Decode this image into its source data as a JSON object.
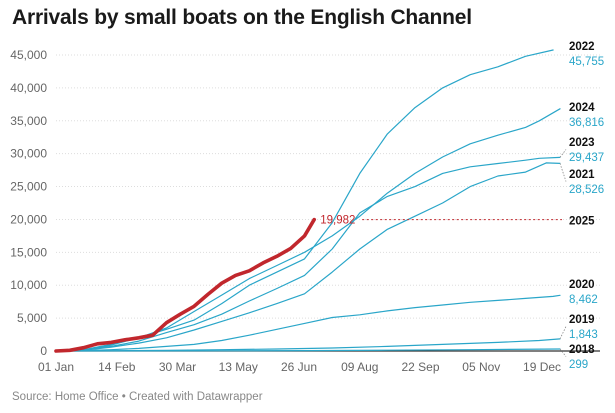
{
  "chart_data": {
    "type": "line",
    "title": "Arrivals by small boats on the English Channel",
    "source": "Source: Home Office • Created with Datawrapper",
    "ylim": [
      0,
      45000
    ],
    "y_ticks": [
      "0",
      "5,000",
      "10,000",
      "15,000",
      "20,000",
      "25,000",
      "30,000",
      "35,000",
      "40,000",
      "45,000"
    ],
    "y_tick_values": [
      0,
      5000,
      10000,
      15000,
      20000,
      25000,
      30000,
      35000,
      40000,
      45000
    ],
    "x_range_days": [
      0,
      365
    ],
    "x_ticks": [
      "01 Jan",
      "14 Feb",
      "30 Mar",
      "13 May",
      "26 Jun",
      "09 Aug",
      "22 Sep",
      "05 Nov",
      "19 Dec"
    ],
    "x_tick_days": [
      0,
      44,
      88,
      132,
      176,
      220,
      264,
      308,
      352
    ],
    "highlight_color": "#c1272d",
    "series_color": "#2aa6c9",
    "series": [
      {
        "name": "2022",
        "final_label": "45,755",
        "points": [
          [
            0,
            0
          ],
          [
            20,
            150
          ],
          [
            40,
            900
          ],
          [
            60,
            2000
          ],
          [
            80,
            3300
          ],
          [
            100,
            4700
          ],
          [
            120,
            7200
          ],
          [
            140,
            10000
          ],
          [
            160,
            12000
          ],
          [
            180,
            14000
          ],
          [
            200,
            19500
          ],
          [
            220,
            27000
          ],
          [
            240,
            33000
          ],
          [
            260,
            37000
          ],
          [
            280,
            40000
          ],
          [
            300,
            42000
          ],
          [
            320,
            43200
          ],
          [
            340,
            44800
          ],
          [
            360,
            45755
          ]
        ]
      },
      {
        "name": "2024",
        "final_label": "36,816",
        "points": [
          [
            0,
            0
          ],
          [
            20,
            200
          ],
          [
            40,
            1000
          ],
          [
            60,
            2000
          ],
          [
            80,
            3500
          ],
          [
            100,
            6000
          ],
          [
            120,
            8500
          ],
          [
            140,
            11000
          ],
          [
            160,
            13000
          ],
          [
            180,
            15000
          ],
          [
            200,
            17500
          ],
          [
            220,
            20500
          ],
          [
            240,
            24000
          ],
          [
            260,
            27000
          ],
          [
            280,
            29500
          ],
          [
            300,
            31500
          ],
          [
            320,
            32800
          ],
          [
            340,
            34000
          ],
          [
            350,
            35000
          ],
          [
            365,
            36816
          ]
        ]
      },
      {
        "name": "2023",
        "final_label": "29,437",
        "points": [
          [
            0,
            0
          ],
          [
            20,
            150
          ],
          [
            40,
            700
          ],
          [
            60,
            1500
          ],
          [
            80,
            2800
          ],
          [
            100,
            4000
          ],
          [
            120,
            5600
          ],
          [
            140,
            7600
          ],
          [
            160,
            9500
          ],
          [
            180,
            11500
          ],
          [
            200,
            15500
          ],
          [
            220,
            21000
          ],
          [
            240,
            23500
          ],
          [
            260,
            25000
          ],
          [
            280,
            27000
          ],
          [
            300,
            28000
          ],
          [
            320,
            28500
          ],
          [
            340,
            29000
          ],
          [
            350,
            29300
          ],
          [
            365,
            29437
          ]
        ]
      },
      {
        "name": "2021",
        "final_label": "28,526",
        "points": [
          [
            0,
            0
          ],
          [
            20,
            100
          ],
          [
            40,
            600
          ],
          [
            60,
            1200
          ],
          [
            80,
            2000
          ],
          [
            100,
            3200
          ],
          [
            120,
            4500
          ],
          [
            140,
            5800
          ],
          [
            160,
            7200
          ],
          [
            180,
            8700
          ],
          [
            200,
            12000
          ],
          [
            220,
            15500
          ],
          [
            240,
            18500
          ],
          [
            260,
            20500
          ],
          [
            280,
            22500
          ],
          [
            300,
            25000
          ],
          [
            320,
            26600
          ],
          [
            340,
            27200
          ],
          [
            355,
            28600
          ],
          [
            365,
            28526
          ]
        ]
      },
      {
        "name": "2020",
        "final_label": "8,462",
        "points": [
          [
            0,
            0
          ],
          [
            20,
            60
          ],
          [
            40,
            200
          ],
          [
            60,
            400
          ],
          [
            80,
            700
          ],
          [
            100,
            1000
          ],
          [
            120,
            1600
          ],
          [
            140,
            2400
          ],
          [
            160,
            3300
          ],
          [
            180,
            4200
          ],
          [
            200,
            5100
          ],
          [
            220,
            5500
          ],
          [
            240,
            6100
          ],
          [
            260,
            6600
          ],
          [
            280,
            7000
          ],
          [
            300,
            7400
          ],
          [
            320,
            7700
          ],
          [
            340,
            8000
          ],
          [
            360,
            8300
          ],
          [
            365,
            8462
          ]
        ]
      },
      {
        "name": "2019",
        "final_label": "1,843",
        "points": [
          [
            0,
            0
          ],
          [
            40,
            50
          ],
          [
            80,
            100
          ],
          [
            120,
            200
          ],
          [
            160,
            300
          ],
          [
            200,
            450
          ],
          [
            240,
            700
          ],
          [
            280,
            1000
          ],
          [
            320,
            1300
          ],
          [
            350,
            1600
          ],
          [
            365,
            1843
          ]
        ]
      },
      {
        "name": "2018",
        "final_label": "299",
        "points": [
          [
            0,
            0
          ],
          [
            60,
            10
          ],
          [
            120,
            30
          ],
          [
            180,
            60
          ],
          [
            240,
            120
          ],
          [
            300,
            200
          ],
          [
            365,
            299
          ]
        ]
      },
      {
        "name": "2025",
        "final_label": "19,982",
        "highlight": true,
        "points": [
          [
            0,
            0
          ],
          [
            10,
            100
          ],
          [
            20,
            500
          ],
          [
            30,
            1100
          ],
          [
            40,
            1300
          ],
          [
            50,
            1700
          ],
          [
            60,
            2000
          ],
          [
            70,
            2400
          ],
          [
            80,
            4300
          ],
          [
            90,
            5600
          ],
          [
            100,
            6800
          ],
          [
            110,
            8600
          ],
          [
            120,
            10300
          ],
          [
            130,
            11500
          ],
          [
            140,
            12200
          ],
          [
            150,
            13400
          ],
          [
            160,
            14400
          ],
          [
            170,
            15600
          ],
          [
            180,
            17500
          ],
          [
            187,
            19982
          ]
        ]
      }
    ]
  }
}
